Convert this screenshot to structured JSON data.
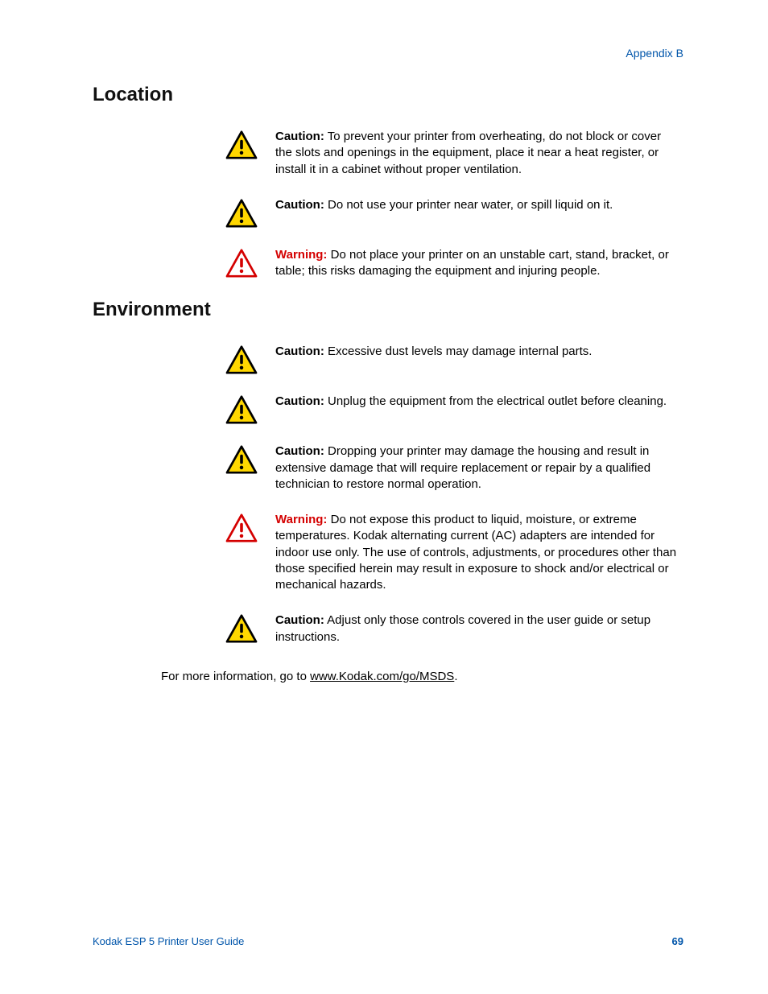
{
  "header": {
    "appendix": "Appendix B"
  },
  "sections": [
    {
      "heading": "Location",
      "callouts": [
        {
          "type": "caution",
          "label": "Caution:",
          "text": " To prevent your printer from overheating, do not block or cover the slots and openings in the equipment, place it near a heat register, or install it in a cabinet without proper ventilation."
        },
        {
          "type": "caution",
          "label": "Caution:",
          "text": " Do not use your printer near water, or spill liquid on it."
        },
        {
          "type": "warning",
          "label": "Warning:",
          "text": "  Do not place your printer on an unstable cart, stand, bracket, or table; this risks damaging the equipment and injuring people."
        }
      ]
    },
    {
      "heading": "Environment",
      "callouts": [
        {
          "type": "caution",
          "label": "Caution:",
          "text": " Excessive dust levels may damage internal parts."
        },
        {
          "type": "caution",
          "label": "Caution:",
          "text": "  Unplug the equipment from the electrical outlet before cleaning."
        },
        {
          "type": "caution",
          "label": "Caution:",
          "text": " Dropping your printer may damage the housing and result in extensive damage that will require replacement or repair by a qualified technician to restore normal operation."
        },
        {
          "type": "warning",
          "label": "Warning:",
          "text": " Do not expose this product to liquid, moisture, or extreme temperatures. Kodak alternating current (AC) adapters are intended for indoor use only. The use of controls, adjustments, or procedures other than those specified herein may result in exposure to shock and/or electrical or mechanical hazards."
        },
        {
          "type": "caution",
          "label": "Caution:",
          "text": " Adjust only those controls covered in the user guide or setup instructions."
        }
      ]
    }
  ],
  "more_info": {
    "prefix": "For more information, go to ",
    "link": "www.Kodak.com/go/MSDS",
    "suffix": "."
  },
  "footer": {
    "guide": "Kodak ESP 5 Printer User Guide",
    "page": "69"
  },
  "icons": {
    "caution": {
      "fill": "#ffd700",
      "stroke": "#000000",
      "mark": "#000000"
    },
    "warning": {
      "fill": "#ffffff",
      "stroke": "#d40000",
      "mark": "#d40000"
    }
  }
}
